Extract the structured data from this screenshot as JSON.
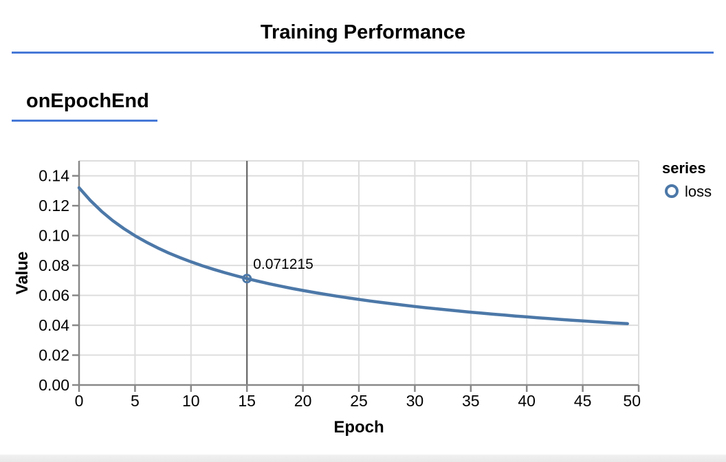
{
  "page": {
    "title": "Training Performance",
    "section_title": "onEpochEnd",
    "accent_color": "#4678d7"
  },
  "chart_data": {
    "type": "line",
    "title": "Training Performance",
    "subtitle": "onEpochEnd",
    "xlabel": "Epoch",
    "ylabel": "Value",
    "xlim": [
      0,
      50
    ],
    "ylim": [
      0,
      0.15
    ],
    "x_ticks": [
      0,
      5,
      10,
      15,
      20,
      25,
      30,
      35,
      40,
      45,
      50
    ],
    "y_ticks": [
      0,
      0.02,
      0.04,
      0.06,
      0.08,
      0.1,
      0.12,
      0.14
    ],
    "y_tick_decimals": 2,
    "grid": true,
    "legend": {
      "title": "series",
      "position": "right",
      "entries": [
        {
          "label": "loss",
          "symbol": "open-circle",
          "color": "#4c78a8"
        }
      ]
    },
    "series": [
      {
        "name": "loss",
        "color": "#4c78a8",
        "x_start": 0,
        "x_step": 1,
        "values": [
          0.13201,
          0.12352,
          0.11629,
          0.11008,
          0.10467,
          0.09989,
          0.09565,
          0.09184,
          0.08841,
          0.0853,
          0.08245,
          0.07984,
          0.07743,
          0.07521,
          0.07314,
          0.071215,
          0.06942,
          0.06774,
          0.06616,
          0.06466,
          0.06326,
          0.06193,
          0.06068,
          0.05948,
          0.05835,
          0.05727,
          0.05624,
          0.05526,
          0.05432,
          0.05342,
          0.05256,
          0.05173,
          0.05094,
          0.05018,
          0.04945,
          0.04874,
          0.04806,
          0.04741,
          0.04678,
          0.04616,
          0.04558,
          0.045,
          0.04445,
          0.04391,
          0.04339,
          0.04289,
          0.0424,
          0.04193,
          0.04147,
          0.04102
        ]
      }
    ],
    "highlight": {
      "series": "loss",
      "x": 15,
      "value": 0.071215,
      "label": "0.071215",
      "rule_color": "#666666"
    },
    "colors": {
      "grid": "#dddddd",
      "axis": "#888888",
      "text": "#000000"
    }
  }
}
